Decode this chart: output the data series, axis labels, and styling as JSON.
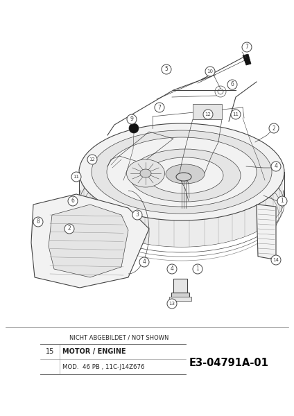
{
  "bg_color": "#ffffff",
  "fig_width": 4.24,
  "fig_height": 6.0,
  "dpi": 100,
  "lc": "#444444",
  "lc_dark": "#111111",
  "lc_mid": "#666666",
  "lc_light": "#aaaaaa",
  "fill_light": "#f2f2f2",
  "fill_mid": "#e5e5e5",
  "fill_dark": "#d0d0d0",
  "text_color": "#222222",
  "not_shown_label": "NICHT ABGEBILDET / NOT SHOWN",
  "row1_num": "15",
  "row1_text": "MOTOR / ENGINE",
  "row2_text": "MOD.  46 PB , 11C-J14Z676",
  "part_number": "E3-04791A-01"
}
